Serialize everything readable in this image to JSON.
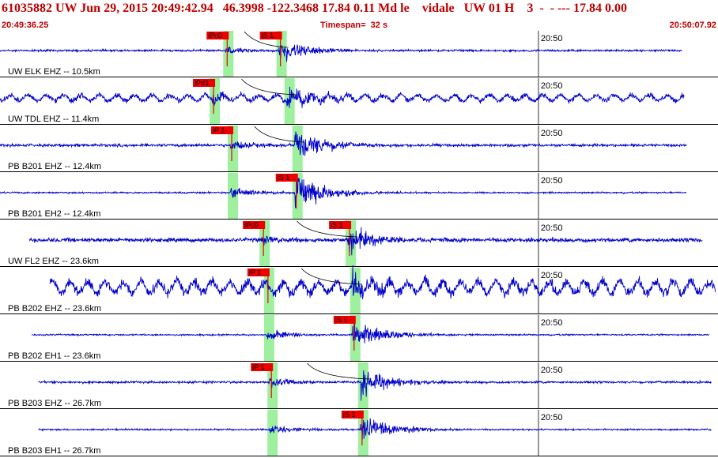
{
  "header": {
    "event_line": "61035882 UW Jun 29, 2015 20:49:42.94   46.3998 -122.3468 17.84 0.11 Md le    vidale   UW 01 H    3  -  - --- 17.84 0.00",
    "start_time": "20:49:36.25",
    "timespan": "Timespan=  32 s",
    "end_time": "20:50:07.92"
  },
  "colors": {
    "trace": "#0000cc",
    "pick": "#ee0000",
    "window": "#9ef09e",
    "header_text": "#c00000"
  },
  "timing": {
    "start_seconds": 0,
    "end_seconds": 31.67,
    "tick_seconds": 23.75,
    "tick_label": "20:50"
  },
  "traces": [
    {
      "label": "UW ELK EHZ -- 10.5km",
      "p_label": "iPc0",
      "s_label": "iS 1",
      "p_t": 9.95,
      "s_t": 12.3,
      "data_start": 0,
      "data_end": 30.1,
      "noise": 1.0,
      "amp": 12
    },
    {
      "label": "UW TDL EHZ -- 11.4km",
      "p_label": "iPd1",
      "s_label": "",
      "p_t": 9.35,
      "s_t": 12.65,
      "data_start": 0,
      "data_end": 30.2,
      "noise": 2.5,
      "amp": 15
    },
    {
      "label": "PB B201 EHZ -- 12.4km",
      "p_label": "iP 1",
      "s_label": "",
      "p_t": 10.15,
      "s_t": 13.0,
      "data_start": 0,
      "data_end": 30.3,
      "noise": 1.4,
      "amp": 17
    },
    {
      "label": "PB B201 EH2 -- 12.4km",
      "p_label": "",
      "s_label": "iS 1",
      "p_t": 10.15,
      "s_t": 13.0,
      "data_start": 0,
      "data_end": 30.3,
      "noise": 0.8,
      "amp": 19
    },
    {
      "label": "UW FL2 EHZ -- 23.6km",
      "p_label": "iPc0",
      "s_label": "iS 1",
      "p_t": 11.55,
      "s_t": 15.35,
      "data_start": 1.3,
      "data_end": 31.0,
      "noise": 2.0,
      "amp": 15
    },
    {
      "label": "PB B202 EHZ -- 23.6km",
      "p_label": "iP 1",
      "s_label": "",
      "p_t": 11.75,
      "s_t": 15.55,
      "data_start": 2.2,
      "data_end": 31.6,
      "noise": 5.0,
      "amp": 16
    },
    {
      "label": "PB B202 EH1 -- 23.6km",
      "p_label": "",
      "s_label": "iS 1",
      "p_t": 11.75,
      "s_t": 15.55,
      "data_start": 1.4,
      "data_end": 31.3,
      "noise": 0.8,
      "amp": 16
    },
    {
      "label": "PB B203 EHZ -- 26.7km",
      "p_label": "iP 1",
      "s_label": "",
      "p_t": 11.9,
      "s_t": 15.9,
      "data_start": 1.7,
      "data_end": 31.4,
      "noise": 1.1,
      "amp": 16
    },
    {
      "label": "PB B203 EH1 -- 26.7km",
      "p_label": "",
      "s_label": "iS 1",
      "p_t": 11.9,
      "s_t": 15.9,
      "data_start": 1.7,
      "data_end": 31.4,
      "noise": 0.8,
      "amp": 16
    }
  ]
}
